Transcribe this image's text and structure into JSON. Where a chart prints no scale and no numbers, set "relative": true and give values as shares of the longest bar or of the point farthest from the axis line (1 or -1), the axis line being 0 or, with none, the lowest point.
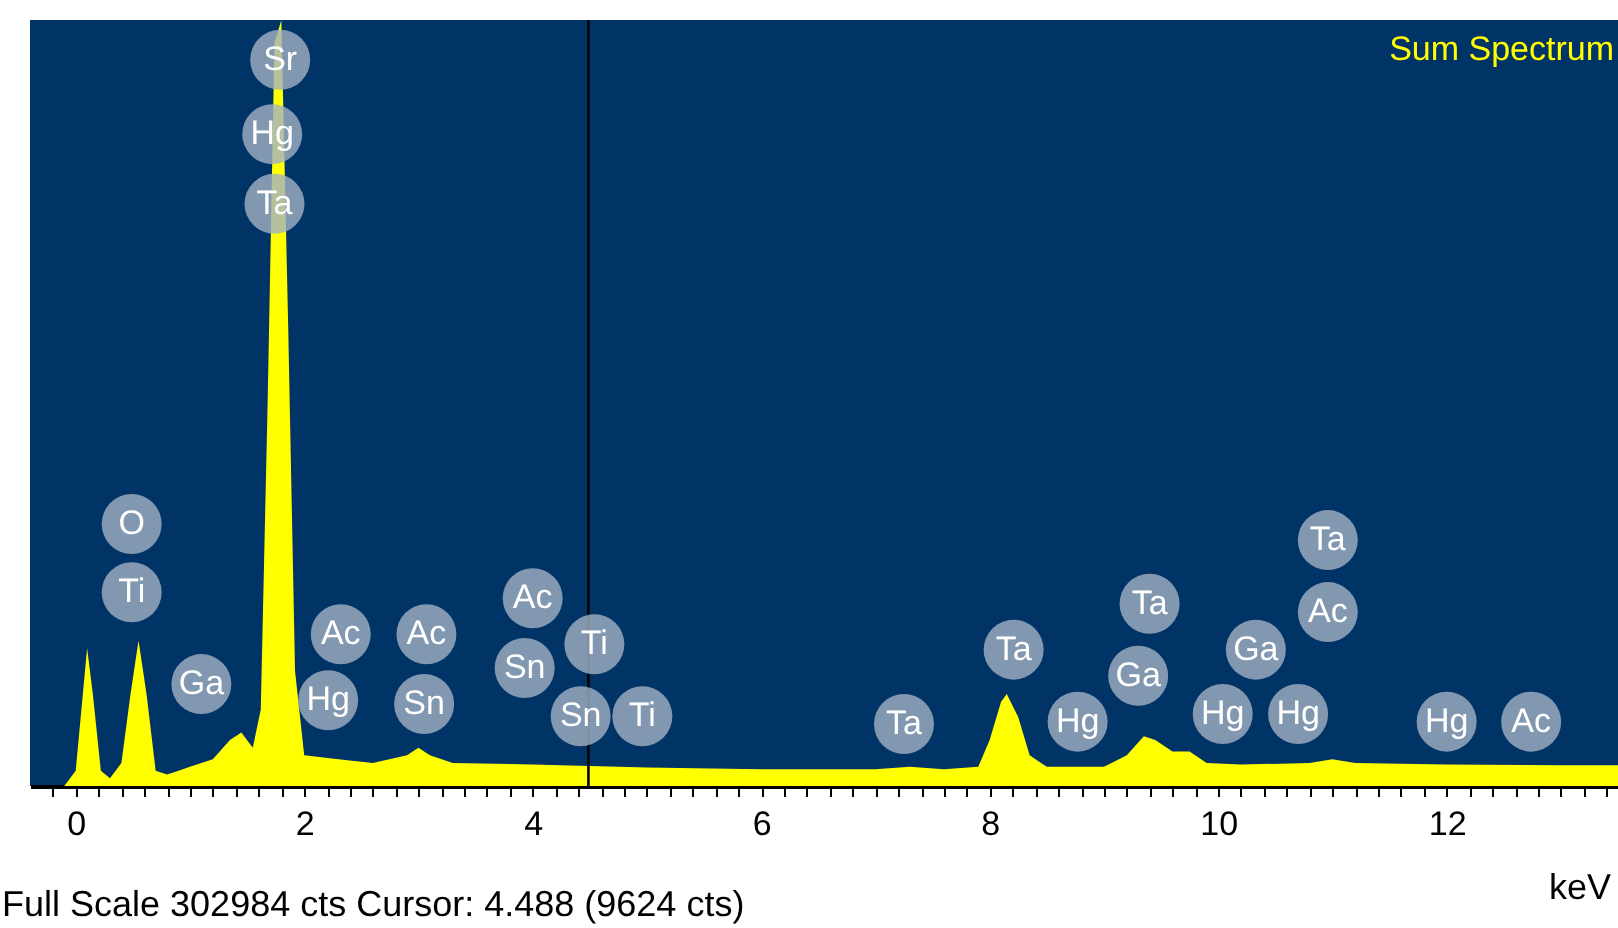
{
  "chart_data": {
    "type": "area",
    "title": "Sum Spectrum",
    "xlabel": "keV",
    "relative": true,
    "grid": false,
    "xlim": [
      -0.4,
      13.5
    ],
    "xticks": [
      {
        "value": -0.2,
        "label": null
      },
      0,
      {
        "value": 0.2,
        "label": null
      },
      {
        "value": 0.4,
        "label": null
      },
      {
        "value": 0.6,
        "label": null
      },
      {
        "value": 0.8,
        "label": null
      },
      {
        "value": 1,
        "label": null
      },
      {
        "value": 1.2,
        "label": null
      },
      {
        "value": 1.4,
        "label": null
      },
      {
        "value": 1.6,
        "label": null
      },
      {
        "value": 1.8,
        "label": null
      },
      2,
      {
        "value": 2.2,
        "label": null
      },
      {
        "value": 2.4,
        "label": null
      },
      {
        "value": 2.6,
        "label": null
      },
      {
        "value": 2.8,
        "label": null
      },
      {
        "value": 3,
        "label": null
      },
      {
        "value": 3.2,
        "label": null
      },
      {
        "value": 3.4,
        "label": null
      },
      {
        "value": 3.6,
        "label": null
      },
      {
        "value": 3.8,
        "label": null
      },
      4,
      {
        "value": 4.2,
        "label": null
      },
      {
        "value": 4.4,
        "label": null
      },
      {
        "value": 4.6,
        "label": null
      },
      {
        "value": 4.8,
        "label": null
      },
      {
        "value": 5,
        "label": null
      },
      {
        "value": 5.2,
        "label": null
      },
      {
        "value": 5.4,
        "label": null
      },
      {
        "value": 5.6,
        "label": null
      },
      {
        "value": 5.8,
        "label": null
      },
      6,
      {
        "value": 6.2,
        "label": null
      },
      {
        "value": 6.4,
        "label": null
      },
      {
        "value": 6.6,
        "label": null
      },
      {
        "value": 6.8,
        "label": null
      },
      {
        "value": 7,
        "label": null
      },
      {
        "value": 7.2,
        "label": null
      },
      {
        "value": 7.4,
        "label": null
      },
      {
        "value": 7.6,
        "label": null
      },
      {
        "value": 7.8,
        "label": null
      },
      8,
      {
        "value": 8.2,
        "label": null
      },
      {
        "value": 8.4,
        "label": null
      },
      {
        "value": 8.6,
        "label": null
      },
      {
        "value": 8.8,
        "label": null
      },
      {
        "value": 9,
        "label": null
      },
      {
        "value": 9.2,
        "label": null
      },
      {
        "value": 9.4,
        "label": null
      },
      {
        "value": 9.6,
        "label": null
      },
      {
        "value": 9.8,
        "label": null
      },
      10,
      {
        "value": 10.2,
        "label": null
      },
      {
        "value": 10.4,
        "label": null
      },
      {
        "value": 10.6,
        "label": null
      },
      {
        "value": 10.8,
        "label": null
      },
      {
        "value": 11,
        "label": null
      },
      {
        "value": 11.2,
        "label": null
      },
      {
        "value": 11.4,
        "label": null
      },
      {
        "value": 11.6,
        "label": null
      },
      {
        "value": 11.8,
        "label": null
      },
      12,
      {
        "value": 12.2,
        "label": null
      },
      {
        "value": 12.4,
        "label": null
      },
      {
        "value": 12.6,
        "label": null
      },
      {
        "value": 12.8,
        "label": null
      },
      {
        "value": 13,
        "label": null
      },
      {
        "value": 13.2,
        "label": null
      },
      {
        "value": 13.4,
        "label": null
      }
    ],
    "x": [
      -0.1,
      0.0,
      0.05,
      0.1,
      0.15,
      0.22,
      0.3,
      0.4,
      0.48,
      0.55,
      0.62,
      0.7,
      0.8,
      0.9,
      1.0,
      1.2,
      1.35,
      1.45,
      1.55,
      1.62,
      1.68,
      1.74,
      1.8,
      1.86,
      1.92,
      2.0,
      2.3,
      2.6,
      2.9,
      3.0,
      3.1,
      3.3,
      4.0,
      4.5,
      5.0,
      6.0,
      7.0,
      7.3,
      7.6,
      7.9,
      8.0,
      8.1,
      8.15,
      8.25,
      8.35,
      8.5,
      9.0,
      9.2,
      9.35,
      9.45,
      9.6,
      9.75,
      9.9,
      10.2,
      10.8,
      11.0,
      11.2,
      12.0,
      13.0,
      13.5
    ],
    "series": [
      {
        "color": "#ffff00",
        "values": [
          0,
          0.02,
          0.1,
          0.18,
          0.12,
          0.02,
          0.01,
          0.03,
          0.12,
          0.19,
          0.12,
          0.02,
          0.015,
          0.02,
          0.025,
          0.035,
          0.06,
          0.07,
          0.05,
          0.1,
          0.5,
          0.97,
          1.0,
          0.6,
          0.15,
          0.04,
          0.035,
          0.03,
          0.04,
          0.05,
          0.04,
          0.03,
          0.028,
          0.026,
          0.024,
          0.022,
          0.022,
          0.025,
          0.022,
          0.025,
          0.06,
          0.11,
          0.12,
          0.09,
          0.04,
          0.025,
          0.025,
          0.04,
          0.065,
          0.06,
          0.045,
          0.045,
          0.03,
          0.028,
          0.03,
          0.035,
          0.03,
          0.028,
          0.027,
          0.027
        ]
      }
    ],
    "ref_lines": [
      {
        "axis": "x",
        "value": 4.488,
        "color": "#000000"
      }
    ],
    "annotations": [
      {
        "text": "Sr",
        "x": 1.79,
        "y": 0.948
      },
      {
        "text": "Hg",
        "x": 1.72,
        "y": 0.851
      },
      {
        "text": "Ta",
        "x": 1.74,
        "y": 0.76
      },
      {
        "text": "O",
        "x": 0.49,
        "y": 0.342
      },
      {
        "text": "Ti",
        "x": 0.49,
        "y": 0.253
      },
      {
        "text": "Ga",
        "x": 1.1,
        "y": 0.133
      },
      {
        "text": "Ac",
        "x": 2.32,
        "y": 0.198
      },
      {
        "text": "Hg",
        "x": 2.21,
        "y": 0.112
      },
      {
        "text": "Ac",
        "x": 3.07,
        "y": 0.198
      },
      {
        "text": "Sn",
        "x": 3.05,
        "y": 0.107
      },
      {
        "text": "Ac",
        "x": 4.0,
        "y": 0.245
      },
      {
        "text": "Sn",
        "x": 3.93,
        "y": 0.154
      },
      {
        "text": "Ti",
        "x": 4.54,
        "y": 0.185
      },
      {
        "text": "Sn",
        "x": 4.42,
        "y": 0.091
      },
      {
        "text": "Ti",
        "x": 4.96,
        "y": 0.091
      },
      {
        "text": "Ta",
        "x": 7.25,
        "y": 0.081
      },
      {
        "text": "Ta",
        "x": 8.21,
        "y": 0.178
      },
      {
        "text": "Hg",
        "x": 8.77,
        "y": 0.084
      },
      {
        "text": "Ta",
        "x": 9.4,
        "y": 0.238
      },
      {
        "text": "Ga",
        "x": 9.3,
        "y": 0.144
      },
      {
        "text": "Ga",
        "x": 10.33,
        "y": 0.178
      },
      {
        "text": "Hg",
        "x": 10.04,
        "y": 0.094
      },
      {
        "text": "Hg",
        "x": 10.7,
        "y": 0.094
      },
      {
        "text": "Ta",
        "x": 10.96,
        "y": 0.321
      },
      {
        "text": "Ac",
        "x": 10.96,
        "y": 0.227
      },
      {
        "text": "Hg",
        "x": 12.0,
        "y": 0.084
      },
      {
        "text": "Ac",
        "x": 12.74,
        "y": 0.084
      },
      "Full Scale 302984 cts Cursor: 4.488  (9624 cts)"
    ]
  }
}
